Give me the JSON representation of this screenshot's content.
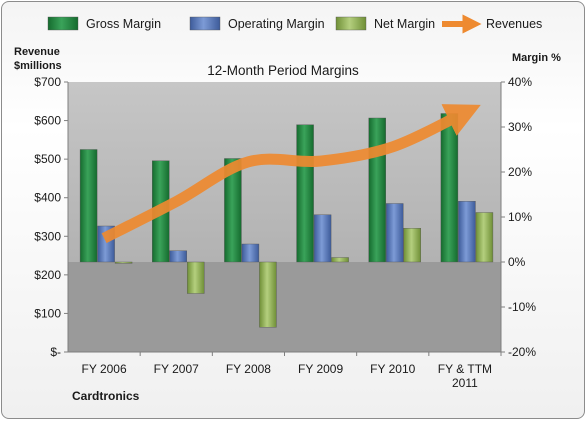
{
  "chart_data": {
    "type": "bar",
    "title": "12-Month Period Margins",
    "company": "Cardtronics",
    "categories": [
      "FY 2006",
      "FY 2007",
      "FY 2008",
      "FY 2009",
      "FY 2010",
      "FY & TTM\n2011"
    ],
    "series": [
      {
        "name": "Gross Margin",
        "axis": "right",
        "unit": "%",
        "color": "#1e7a3a",
        "values": [
          25.0,
          22.5,
          23.0,
          30.5,
          32.0,
          33.0
        ]
      },
      {
        "name": "Operating Margin",
        "axis": "right",
        "unit": "%",
        "color": "#4f6fb0",
        "values": [
          8.0,
          2.5,
          4.0,
          10.5,
          13.0,
          13.5
        ]
      },
      {
        "name": "Net Margin",
        "axis": "right",
        "unit": "%",
        "color": "#8bab4f",
        "values": [
          -0.3,
          -7.0,
          -14.5,
          1.0,
          7.5,
          11.0
        ]
      },
      {
        "name": "Revenues",
        "axis": "left",
        "unit": "$millions",
        "type": "line",
        "color": "#ee8a30",
        "values": [
          295,
          390,
          493,
          495,
          532,
          621
        ]
      }
    ],
    "left_axis": {
      "label_line1": "Revenue",
      "label_line2": "$millions",
      "ylim": [
        0,
        700
      ],
      "ticks": [
        0,
        100,
        200,
        300,
        400,
        500,
        600,
        700
      ],
      "tick_labels": [
        "$-",
        "$100",
        "$200",
        "$300",
        "$400",
        "$500",
        "$600",
        "$700"
      ]
    },
    "right_axis": {
      "label": "Margin %",
      "ylim": [
        -20,
        40
      ],
      "ticks": [
        -20,
        -10,
        0,
        10,
        20,
        30,
        40
      ],
      "tick_labels": [
        "-20%",
        "-10%",
        "0%",
        "10%",
        "20%",
        "30%",
        "40%"
      ]
    },
    "legend": {
      "position": "top",
      "items": [
        "Gross Margin",
        "Operating Margin",
        "Net Margin",
        "Revenues"
      ]
    },
    "grid": false,
    "plot_area_colors": {
      "above_zero": "#bdbdbd",
      "below_zero": "#9a9a9a"
    }
  }
}
